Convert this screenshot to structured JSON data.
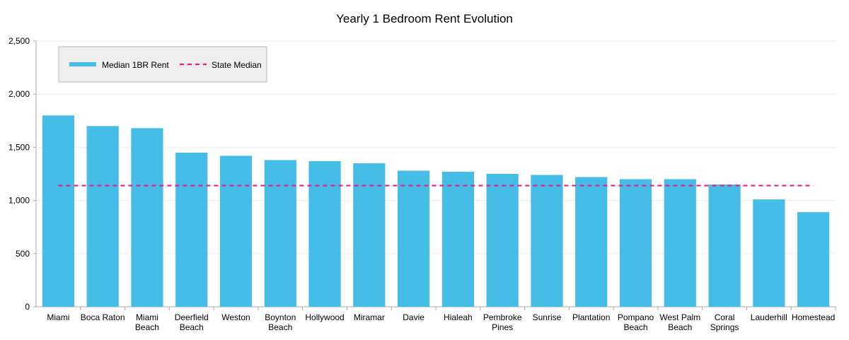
{
  "colors": {
    "bar": "#45BDE6",
    "state_median_line": "#F0198C",
    "gridline": "#EEEEEE",
    "axis": "#AAAAAA",
    "legend_bg": "#EEEEEE",
    "legend_border": "#BBBBBB"
  },
  "chart_data": {
    "type": "bar",
    "title": "Yearly 1 Bedroom Rent Evolution",
    "xlabel": "",
    "ylabel": "",
    "ylim": [
      0,
      2500
    ],
    "yticks": [
      0,
      500,
      1000,
      1500,
      2000,
      2500
    ],
    "ytick_labels": [
      "0",
      "500",
      "1,000",
      "1,500",
      "2,000",
      "2,500"
    ],
    "grid": true,
    "legend_position": "top-left",
    "categories": [
      [
        "Miami"
      ],
      [
        "Boca Raton"
      ],
      [
        "Miami",
        "Beach"
      ],
      [
        "Deerfield",
        "Beach"
      ],
      [
        "Weston"
      ],
      [
        "Boynton",
        "Beach"
      ],
      [
        "Hollywood"
      ],
      [
        "Miramar"
      ],
      [
        "Davie"
      ],
      [
        "Hialeah"
      ],
      [
        "Pembroke",
        "Pines"
      ],
      [
        "Sunrise"
      ],
      [
        "Plantation"
      ],
      [
        "Pompano",
        "Beach"
      ],
      [
        "West Palm",
        "Beach"
      ],
      [
        "Coral",
        "Springs"
      ],
      [
        "Lauderhill"
      ],
      [
        "Homestead"
      ]
    ],
    "series": [
      {
        "name": "Median 1BR Rent",
        "type": "bar",
        "values": [
          1800,
          1700,
          1680,
          1450,
          1420,
          1380,
          1370,
          1350,
          1280,
          1270,
          1250,
          1240,
          1220,
          1200,
          1200,
          1150,
          1010,
          890
        ]
      },
      {
        "name": "State Median",
        "type": "line",
        "style": "dashed",
        "value": 1140
      }
    ]
  }
}
